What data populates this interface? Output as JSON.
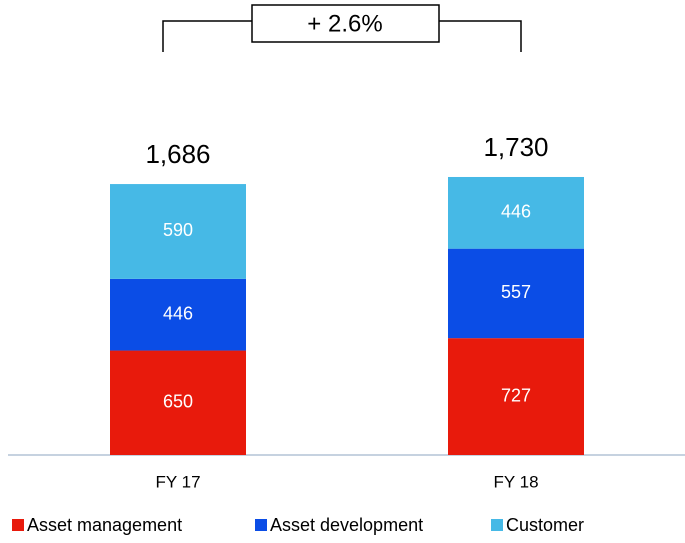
{
  "chart_data": {
    "type": "stacked_bar",
    "annotation": "+ 2.6%",
    "categories": [
      "FY 17",
      "FY 18"
    ],
    "series": [
      {
        "name": "Asset management",
        "color": "#e81a0c",
        "values": [
          650,
          727
        ]
      },
      {
        "name": "Asset development",
        "color": "#0b4de6",
        "values": [
          446,
          557
        ]
      },
      {
        "name": "Customer",
        "color": "#46b9e6",
        "values": [
          590,
          446
        ]
      }
    ],
    "totals": [
      1686,
      1730
    ],
    "total_labels": [
      "1,686",
      "1,730"
    ],
    "legend": "bottom"
  }
}
